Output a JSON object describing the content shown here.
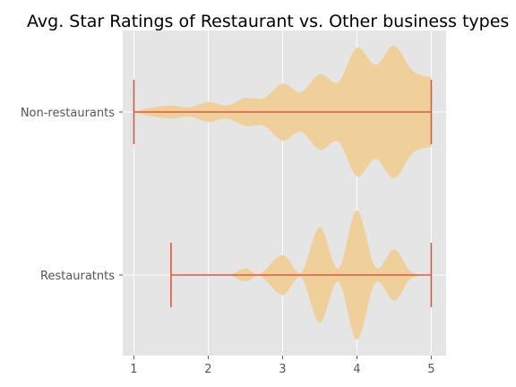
{
  "chart_data": {
    "type": "violin",
    "title": "Avg. Star Ratings of Restaurant vs. Other business types",
    "xlabel": "",
    "ylabel": "",
    "xlim": [
      0.85,
      5.2
    ],
    "xticks": [
      1,
      2,
      3,
      4,
      5
    ],
    "grid": true,
    "colors": {
      "violin_fill": "#f0d09a",
      "whisker": "#e2583e",
      "plot_bg": "#e5e5e5",
      "grid": "#ffffff"
    },
    "categories": [
      "Non-restaurants",
      "Restauratnts"
    ],
    "series": [
      {
        "name": "Non-restaurants",
        "min": 1.0,
        "max": 5.0,
        "density": [
          [
            1.0,
            0.0
          ],
          [
            1.2,
            0.06
          ],
          [
            1.5,
            0.1
          ],
          [
            1.75,
            0.07
          ],
          [
            2.0,
            0.15
          ],
          [
            2.25,
            0.1
          ],
          [
            2.5,
            0.21
          ],
          [
            2.75,
            0.21
          ],
          [
            3.0,
            0.43
          ],
          [
            3.25,
            0.3
          ],
          [
            3.5,
            0.57
          ],
          [
            3.75,
            0.45
          ],
          [
            4.0,
            0.97
          ],
          [
            4.25,
            0.71
          ],
          [
            4.5,
            1.0
          ],
          [
            4.75,
            0.62
          ],
          [
            5.0,
            0.52
          ]
        ]
      },
      {
        "name": "Restauratnts",
        "min": 1.5,
        "max": 5.0,
        "density": [
          [
            2.3,
            0.0
          ],
          [
            2.5,
            0.1
          ],
          [
            2.7,
            0.02
          ],
          [
            3.0,
            0.31
          ],
          [
            3.25,
            0.04
          ],
          [
            3.5,
            0.74
          ],
          [
            3.75,
            0.1
          ],
          [
            4.0,
            1.0
          ],
          [
            4.25,
            0.12
          ],
          [
            4.5,
            0.4
          ],
          [
            4.7,
            0.08
          ],
          [
            4.85,
            0.0
          ]
        ]
      }
    ]
  }
}
